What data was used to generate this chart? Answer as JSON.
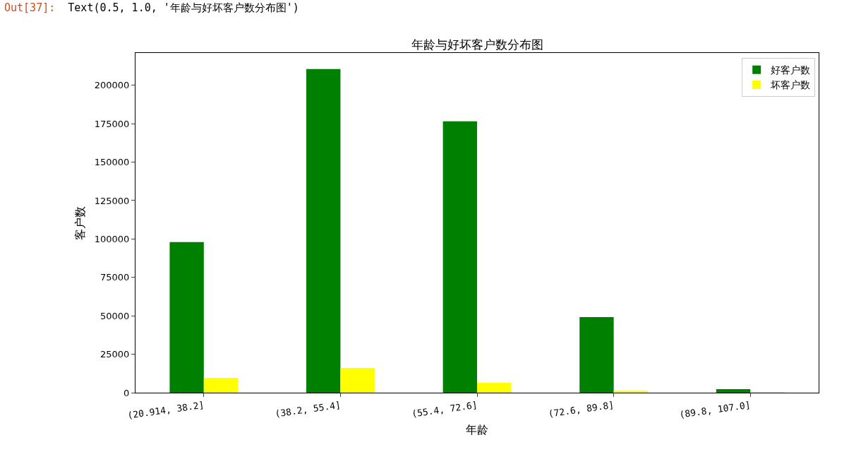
{
  "chart_data": {
    "type": "bar",
    "title": "年龄与好坏客户数分布图",
    "xlabel": "年龄",
    "ylabel": "客户数",
    "annotations": [
      "Out[37]:  Text(0.5, 1.0, '年龄与好坏客户数分布图')"
    ],
    "categories": [
      "(20.914, 38.2]",
      "(38.2, 55.4]",
      "(55.4, 72.6]",
      "(72.6, 89.8]",
      "(89.8, 107.0]"
    ],
    "series": [
      {
        "name": "好客户数",
        "color": "#008000",
        "values": [
          98000,
          210500,
          176500,
          49200,
          2300
        ]
      },
      {
        "name": "坏客户数",
        "color": "#ffff00",
        "values": [
          9700,
          16100,
          6400,
          1400,
          100
        ]
      }
    ],
    "ylim": [
      0,
      221000
    ],
    "yticks": [
      0,
      25000,
      50000,
      75000,
      100000,
      125000,
      150000,
      175000,
      200000
    ],
    "grid": false,
    "legend": "top right"
  }
}
